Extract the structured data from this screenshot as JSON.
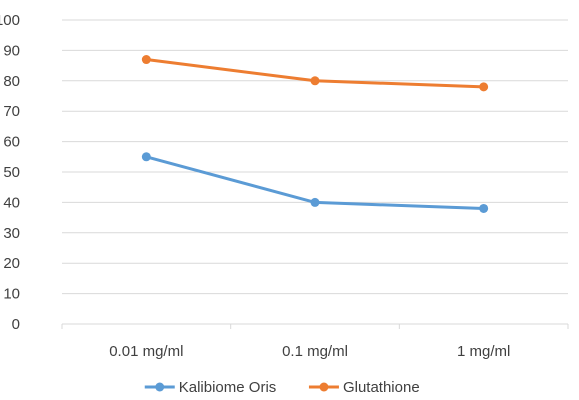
{
  "chart_data": {
    "type": "line",
    "title": "",
    "xlabel": "",
    "ylabel": "",
    "categories": [
      "0.01 mg/ml",
      "0.1 mg/ml",
      "1 mg/ml"
    ],
    "ylim": [
      0,
      100
    ],
    "yticks": [
      0,
      10,
      20,
      30,
      40,
      50,
      60,
      70,
      80,
      90,
      100
    ],
    "grid": "horizontal",
    "legend_position": "bottom",
    "series": [
      {
        "name": "Kalibiome Oris",
        "color": "#5B9BD5",
        "values": [
          55,
          40,
          38
        ]
      },
      {
        "name": "Glutathione",
        "color": "#ED7D31",
        "values": [
          87,
          80,
          78
        ]
      }
    ]
  }
}
